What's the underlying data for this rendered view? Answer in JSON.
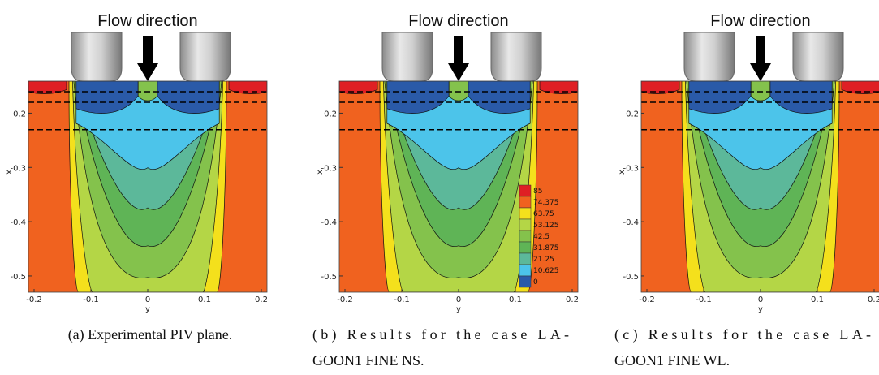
{
  "figure": {
    "flow_label": "Flow direction",
    "x_axis_label": "y",
    "y_axis_label": "x",
    "xlim": [
      -0.21,
      0.21
    ],
    "ylim": [
      -0.53,
      -0.141
    ],
    "xticks": [
      -0.2,
      -0.1,
      0,
      0.1,
      0.2
    ],
    "yticks": [
      -0.2,
      -0.3,
      -0.4,
      -0.5
    ],
    "colorbar_levels": [
      85,
      74.375,
      63.75,
      53.125,
      42.5,
      31.875,
      21.25,
      10.625,
      0
    ],
    "panels": [
      {
        "caption": [
          "(a) Experimental PIV plane."
        ],
        "colorbar": false
      },
      {
        "caption": [
          "(b) Results for the case LA-",
          "GOON1 FINE NS."
        ],
        "colorbar": true
      },
      {
        "caption": [
          "(c) Results for the case LA-",
          "GOON1 FINE WL."
        ],
        "colorbar": false
      }
    ]
  }
}
